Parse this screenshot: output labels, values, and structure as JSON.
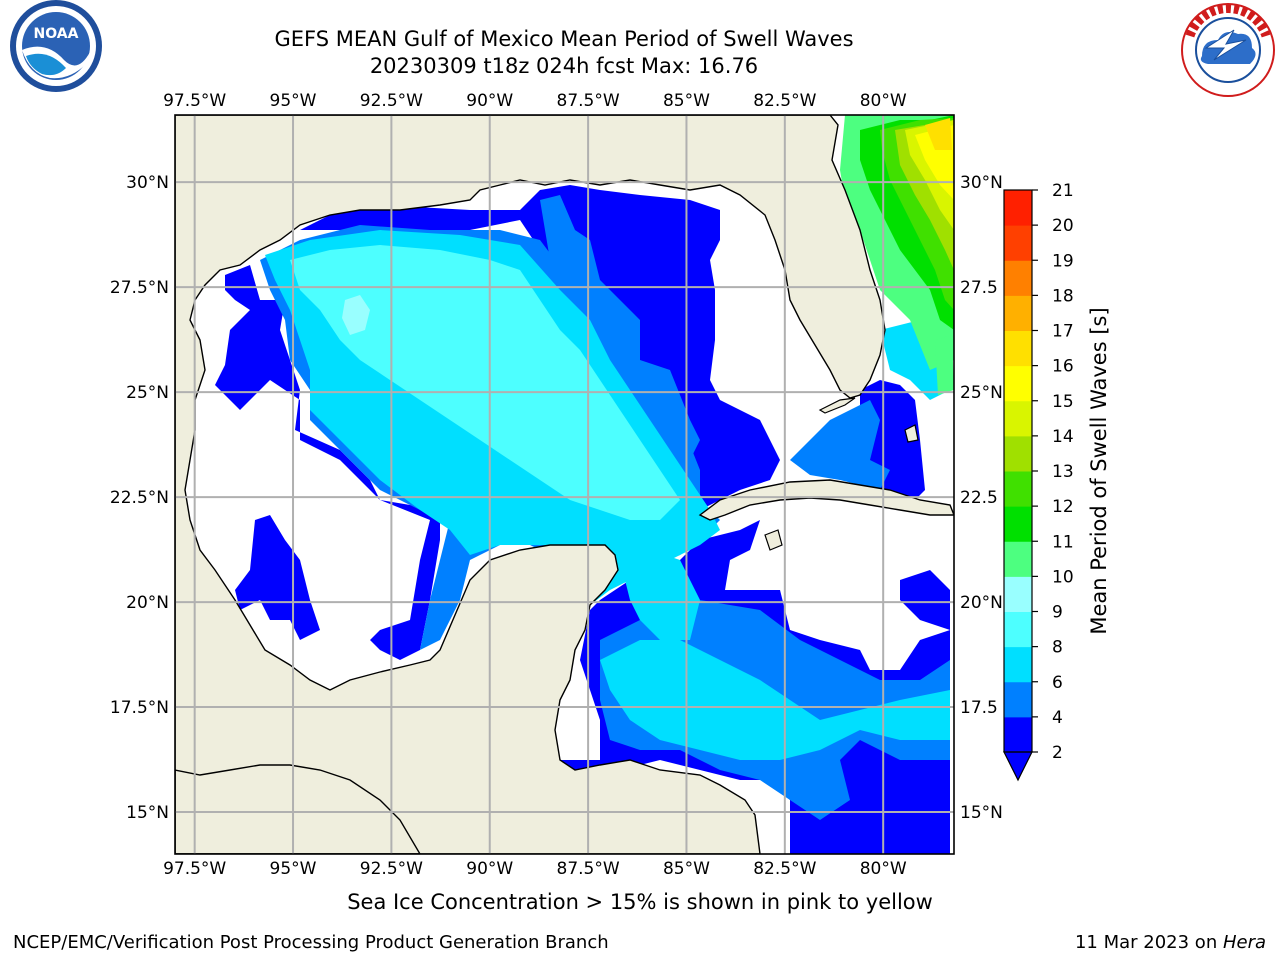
{
  "title": "GEFS MEAN Gulf of Mexico Mean Period of Swell Waves",
  "subtitle": "20230309 t18z 024h fcst   Max: 16.76",
  "note": "Sea Ice Concentration > 15% is shown in pink to yellow",
  "footer_left": "NCEP/EMC/Verification Post Processing Product Generation Branch",
  "footer_right_date": "11 Mar 2023 on ",
  "footer_right_host": "Hera",
  "logos": {
    "left": "noaa-logo-icon",
    "right": "nws-logo-icon",
    "noaa_text": "NOAA",
    "nws_text": "NATIONAL WEATHER SERVICE"
  },
  "map": {
    "lon_range": [
      -98.0,
      -78.2
    ],
    "lat_range": [
      14.0,
      31.6
    ],
    "lon_ticks": [
      "97.5°W",
      "95°W",
      "92.5°W",
      "90°W",
      "87.5°W",
      "85°W",
      "82.5°W",
      "80°W"
    ],
    "lon_values": [
      -97.5,
      -95,
      -92.5,
      -90,
      -87.5,
      -85,
      -82.5,
      -80
    ],
    "lat_ticks_left": [
      "30°N",
      "27.5°N",
      "25°N",
      "22.5°N",
      "20°N",
      "17.5°N",
      "15°N"
    ],
    "lat_ticks_right": [
      "30°N",
      "27.5",
      "25°N",
      "22.5",
      "20°N",
      "17.5",
      "15°N"
    ],
    "lat_values": [
      30,
      27.5,
      25,
      22.5,
      20,
      17.5,
      15
    ],
    "land_color": "#efeedd",
    "grid": true
  },
  "colorbar": {
    "label": "Mean Period of Swell Waves [s]",
    "ticks": [
      "2",
      "4",
      "6",
      "8",
      "9",
      "10",
      "11",
      "12",
      "13",
      "14",
      "15",
      "16",
      "17",
      "18",
      "19",
      "20",
      "21"
    ],
    "colors": [
      "#0000ff",
      "#0080ff",
      "#00dfff",
      "#4dffff",
      "#99ffff",
      "#4dff80",
      "#00e000",
      "#40e000",
      "#a0e000",
      "#d9f500",
      "#ffff00",
      "#ffe000",
      "#ffb000",
      "#ff8000",
      "#ff4000",
      "#ff2000"
    ],
    "extend": "min"
  }
}
